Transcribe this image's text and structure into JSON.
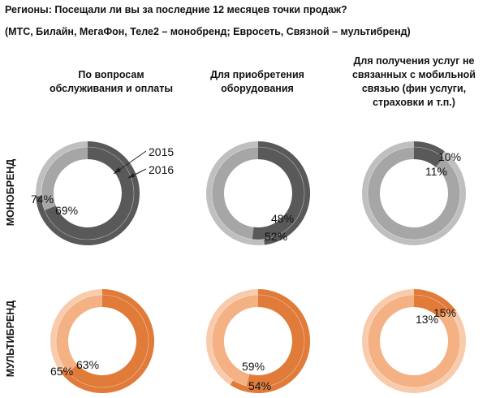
{
  "title": "Регионы: Посещали ли вы за последние 12 месяцев точки продаж?",
  "subtitle": "(МТС, Билайн, МегаФон, Теле2 – монобренд; Евросеть, Связной – мультибренд)",
  "columns": [
    {
      "lines": [
        "По вопросам",
        "обслуживания и оплаты"
      ]
    },
    {
      "lines": [
        "Для приобретения",
        "оборудования"
      ]
    },
    {
      "lines": [
        "Для получения услуг не",
        "связанных с мобильной",
        "связью (фин услуги,",
        "страховки и т.п.)"
      ]
    }
  ],
  "rows": [
    "МОНОБРЕНД",
    "МУЛЬТИБРЕНД"
  ],
  "legend_labels": [
    "2015",
    "2016"
  ],
  "colors": {
    "mono_dark": "#595959",
    "mono_light": "#bfbfbf",
    "mono_ring_light": "#a6a6a6",
    "multi_dark": "#e07b39",
    "multi_light": "#f8cbad",
    "multi_ring_light": "#f4b183"
  },
  "chart_data": [
    {
      "type": "pie",
      "row": "МОНОБРЕНД",
      "column": "По вопросам обслуживания и оплаты",
      "series": [
        {
          "name": "2015",
          "value": 74,
          "label": "74%"
        },
        {
          "name": "2016",
          "value": 69,
          "label": "69%"
        }
      ]
    },
    {
      "type": "pie",
      "row": "МОНОБРЕНД",
      "column": "Для приобретения оборудования",
      "series": [
        {
          "name": "2015",
          "value": 48,
          "label": "48%"
        },
        {
          "name": "2016",
          "value": 52,
          "label": "52%"
        }
      ]
    },
    {
      "type": "pie",
      "row": "МОНОБРЕНД",
      "column": "Для получения услуг не связанных с мобильной связью",
      "series": [
        {
          "name": "2015",
          "value": 10,
          "label": "10%"
        },
        {
          "name": "2016",
          "value": 11,
          "label": "11%"
        }
      ]
    },
    {
      "type": "pie",
      "row": "МУЛЬТИБРЕНД",
      "column": "По вопросам обслуживания и оплаты",
      "series": [
        {
          "name": "2015",
          "value": 65,
          "label": "65%"
        },
        {
          "name": "2016",
          "value": 63,
          "label": "63%"
        }
      ]
    },
    {
      "type": "pie",
      "row": "МУЛЬТИБРЕНД",
      "column": "Для приобретения оборудования",
      "series": [
        {
          "name": "2015",
          "value": 59,
          "label": "59%"
        },
        {
          "name": "2016",
          "value": 54,
          "label": "54%"
        }
      ]
    },
    {
      "type": "pie",
      "row": "МУЛЬТИБРЕНД",
      "column": "Для получения услуг не связанных с мобильной связью",
      "series": [
        {
          "name": "2015",
          "value": 15,
          "label": "15%"
        },
        {
          "name": "2016",
          "value": 13,
          "label": "13%"
        }
      ]
    }
  ]
}
